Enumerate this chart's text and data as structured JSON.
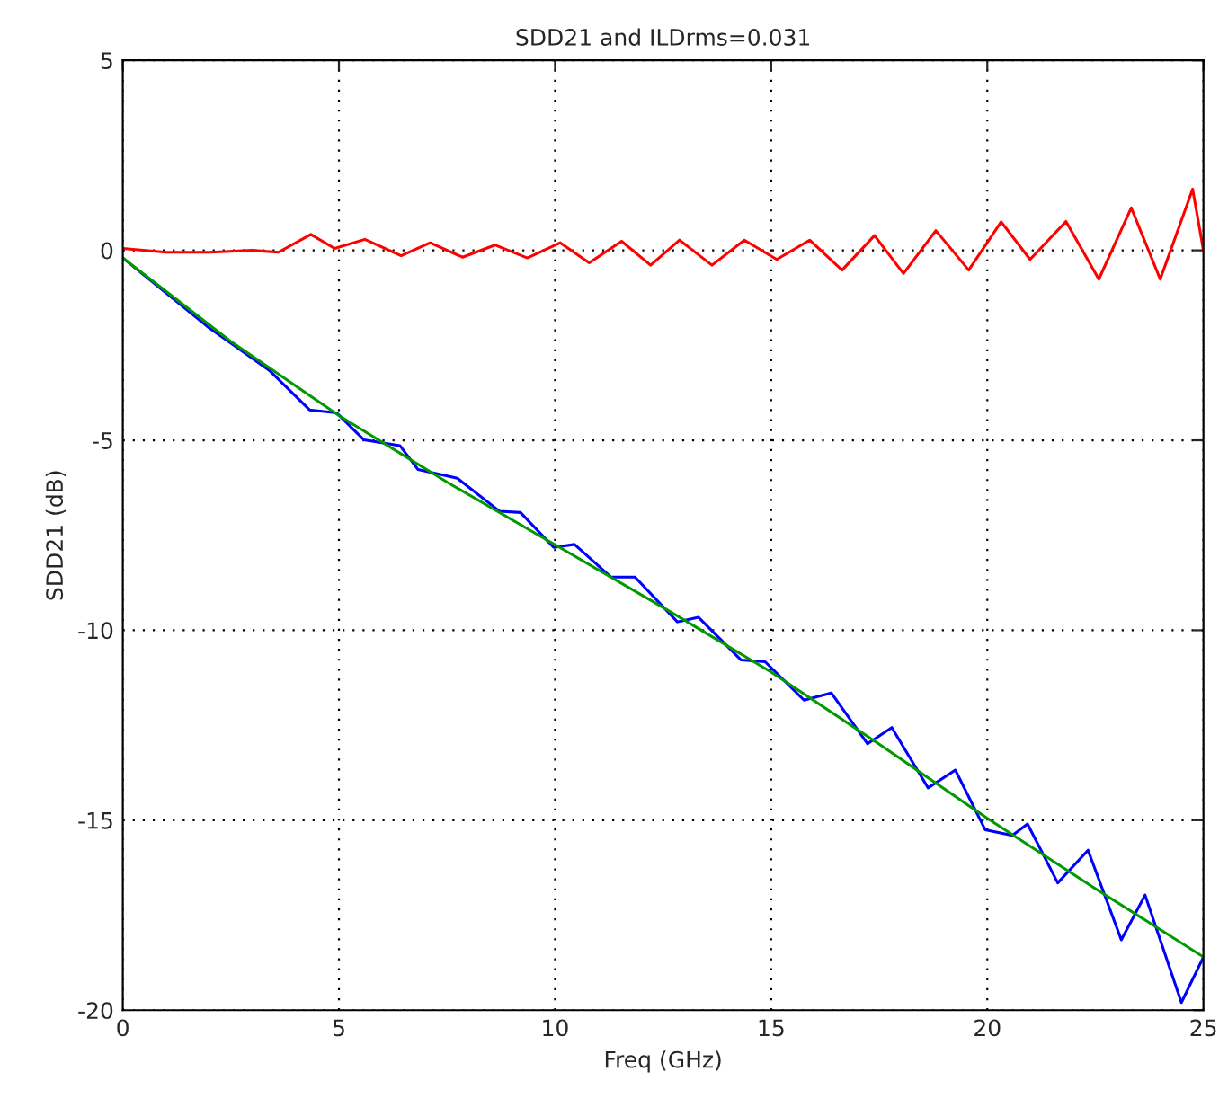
{
  "chart_data": {
    "type": "line",
    "title": "SDD21 and ILDrms=0.031",
    "xlabel": "Freq (GHz)",
    "ylabel": "SDD21 (dB)",
    "xlim": [
      0,
      25
    ],
    "ylim": [
      -20,
      5
    ],
    "xticks": [
      0,
      5,
      10,
      15,
      20,
      25
    ],
    "yticks": [
      -20,
      -15,
      -10,
      -5,
      0,
      5
    ],
    "grid": true,
    "marker": "none",
    "line_style": "solid",
    "series": [
      {
        "color": "#ff0000",
        "x": [
          0,
          1,
          2,
          3,
          3.6,
          4.35,
          4.9,
          5.6,
          6.44,
          7.11,
          7.86,
          8.61,
          9.36,
          10.12,
          10.79,
          11.54,
          12.21,
          12.88,
          13.63,
          14.38,
          15.13,
          15.89,
          16.64,
          17.39,
          18.06,
          18.81,
          19.57,
          20.32,
          20.99,
          21.82,
          22.58,
          23.33,
          24.0,
          24.75,
          25
        ],
        "values": [
          0.05,
          -0.05,
          -0.05,
          0.0,
          -0.05,
          0.42,
          0.05,
          0.29,
          -0.14,
          0.2,
          -0.18,
          0.14,
          -0.2,
          0.2,
          -0.33,
          0.24,
          -0.39,
          0.27,
          -0.39,
          0.27,
          -0.24,
          0.27,
          -0.52,
          0.39,
          -0.61,
          0.52,
          -0.52,
          0.75,
          -0.24,
          0.76,
          -0.76,
          1.12,
          -0.76,
          1.61,
          0.0
        ]
      },
      {
        "color": "#0000ff",
        "x": [
          0,
          1.95,
          3.41,
          4.32,
          4.95,
          5.58,
          6.41,
          6.83,
          7.74,
          8.72,
          9.2,
          9.97,
          10.45,
          11.29,
          11.85,
          12.83,
          13.32,
          14.3,
          14.86,
          15.76,
          16.39,
          17.23,
          17.79,
          18.63,
          19.26,
          19.95,
          20.58,
          20.93,
          21.63,
          22.33,
          23.1,
          23.65,
          24.49,
          25
        ],
        "values": [
          -0.2,
          -2.0,
          -3.18,
          -4.2,
          -4.28,
          -4.99,
          -5.14,
          -5.77,
          -6.0,
          -6.87,
          -6.9,
          -7.82,
          -7.74,
          -8.6,
          -8.6,
          -9.78,
          -9.66,
          -10.78,
          -10.83,
          -11.84,
          -11.65,
          -12.99,
          -12.56,
          -14.15,
          -13.68,
          -15.25,
          -15.4,
          -15.1,
          -16.65,
          -15.79,
          -18.15,
          -16.97,
          -19.8,
          -18.6
        ]
      },
      {
        "color": "#009900",
        "x": [
          0,
          2.5,
          5,
          7.5,
          10,
          12.5,
          15,
          17.5,
          20,
          22.5,
          25
        ],
        "values": [
          -0.2,
          -2.4,
          -4.35,
          -6.1,
          -7.75,
          -9.4,
          -11.1,
          -13.0,
          -14.95,
          -16.8,
          -18.6
        ]
      }
    ]
  }
}
